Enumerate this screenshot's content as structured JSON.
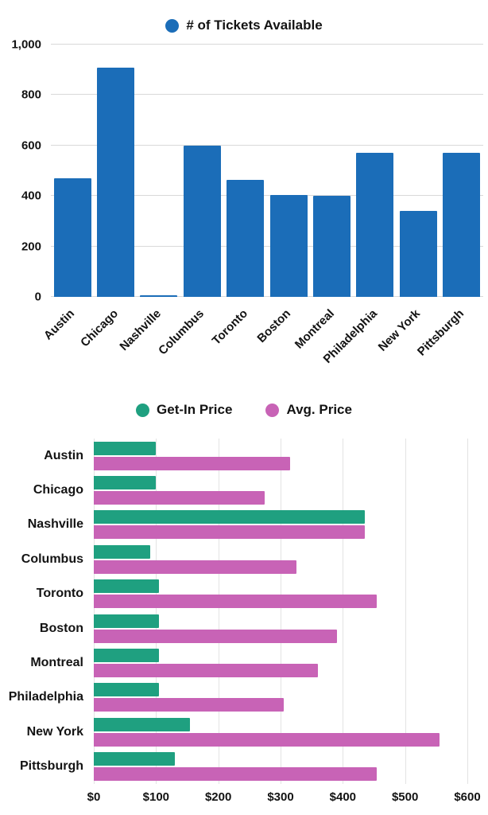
{
  "chart_data": [
    {
      "type": "bar",
      "title": "# of Tickets Available",
      "legend": [
        "# of Tickets Available"
      ],
      "legend_position": "top-center",
      "categories": [
        "Austin",
        "Chicago",
        "Nashville",
        "Columbus",
        "Toronto",
        "Boston",
        "Montreal",
        "Philadelphia",
        "New York",
        "Pittsburgh"
      ],
      "values": [
        470,
        910,
        5,
        600,
        465,
        405,
        400,
        570,
        340,
        570
      ],
      "ylim": [
        0,
        1000
      ],
      "y_ticks": [
        "0",
        "200",
        "400",
        "600",
        "800",
        "1,000"
      ],
      "grid": "horizontal",
      "bar_color": "#1B6DB8",
      "gridline_color": "#d9d9d9",
      "x_label_rotation_deg": -45
    },
    {
      "type": "bar-horizontal",
      "legend_position": "top-center",
      "categories": [
        "Austin",
        "Chicago",
        "Nashville",
        "Columbus",
        "Toronto",
        "Boston",
        "Montreal",
        "Philadelphia",
        "New York",
        "Pittsburgh"
      ],
      "series": [
        {
          "name": "Get-In Price",
          "color": "#1FA080",
          "values": [
            100,
            100,
            435,
            90,
            105,
            105,
            105,
            105,
            155,
            130
          ]
        },
        {
          "name": "Avg. Price",
          "color": "#C863B6",
          "values": [
            315,
            275,
            435,
            325,
            455,
            390,
            360,
            305,
            555,
            455
          ]
        }
      ],
      "xlim": [
        0,
        600
      ],
      "x_ticks": [
        "$0",
        "$100",
        "$200",
        "$300",
        "$400",
        "$500",
        "$600"
      ],
      "grid": "vertical",
      "gridline_color": "#e3e3e3"
    }
  ]
}
